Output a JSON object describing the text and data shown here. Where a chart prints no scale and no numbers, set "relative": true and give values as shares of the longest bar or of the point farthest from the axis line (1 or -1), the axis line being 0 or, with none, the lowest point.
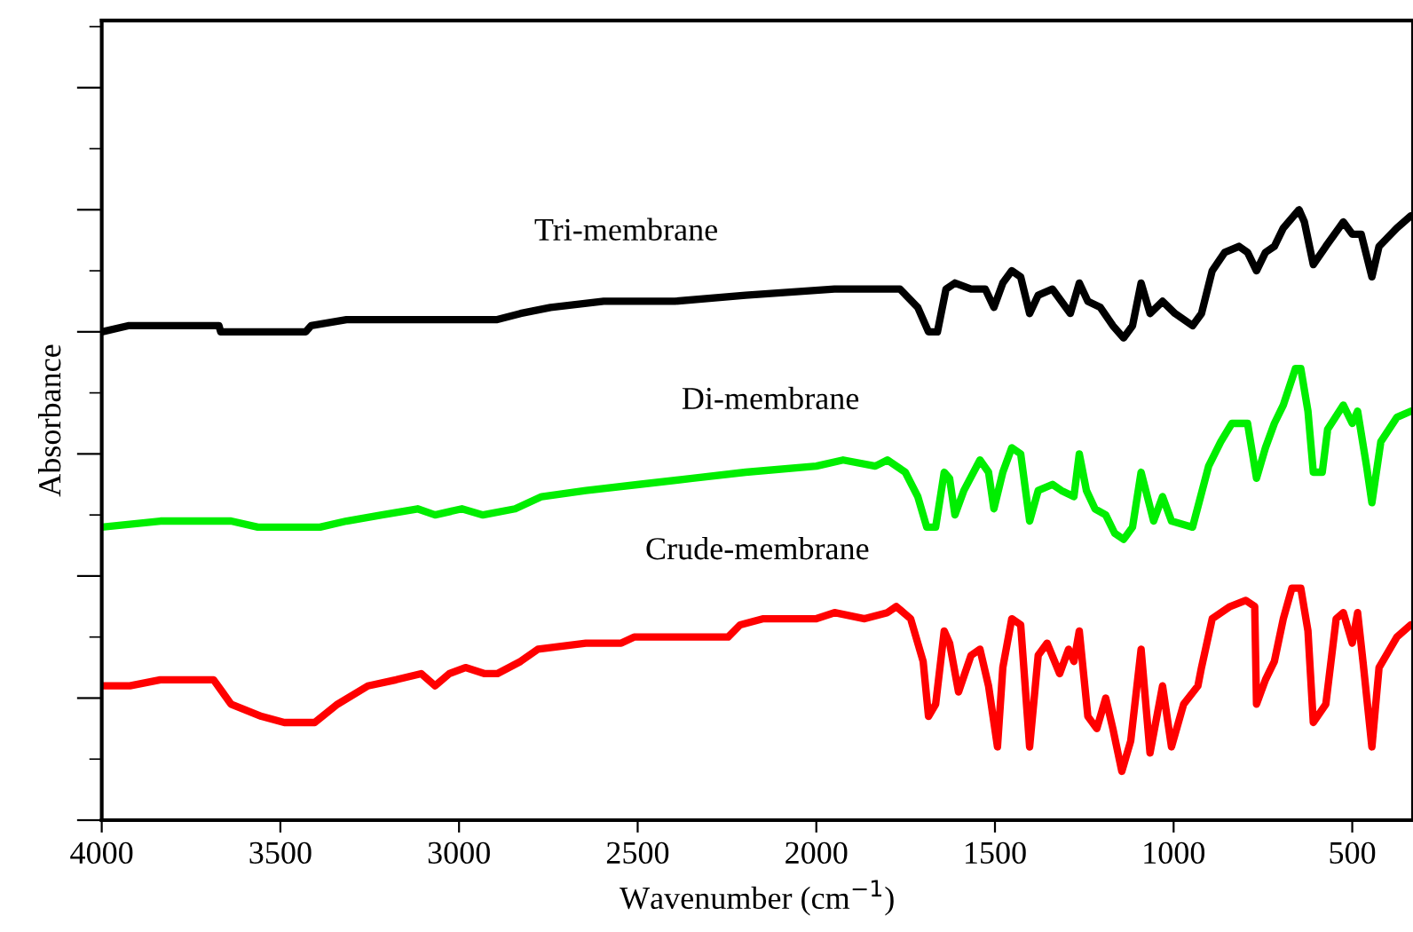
{
  "chart_data": {
    "type": "line",
    "relative": true,
    "xlabel": "Wavenumber (cm$^{−1}$)",
    "ylabel": "Absorbance",
    "xlim": [
      4000,
      330
    ],
    "xticks": [
      4000,
      3500,
      3000,
      2500,
      2000,
      1500,
      1000,
      500
    ],
    "tick_labels": "x",
    "grid": false,
    "legend": false,
    "marker": "none",
    "line_style": "solid",
    "series": [
      {
        "name": "Tri-membrane",
        "color": "#000000",
        "x": [
          4000,
          3926,
          3672,
          3667,
          3429,
          3414,
          3315,
          3191,
          2893,
          2828,
          2744,
          2595,
          2396,
          2198,
          1949,
          1850,
          1766,
          1716,
          1686,
          1661,
          1637,
          1612,
          1567,
          1527,
          1503,
          1478,
          1453,
          1428,
          1403,
          1379,
          1339,
          1289,
          1264,
          1240,
          1205,
          1170,
          1140,
          1115,
          1091,
          1066,
          1031,
          996,
          947,
          922,
          892,
          857,
          817,
          793,
          768,
          743,
          718,
          693,
          649,
          634,
          609,
          574,
          525,
          500,
          475,
          445,
          425,
          375,
          336
        ],
        "values": [
          0.8,
          0.81,
          0.81,
          0.8,
          0.8,
          0.81,
          0.82,
          0.82,
          0.82,
          0.83,
          0.84,
          0.85,
          0.85,
          0.86,
          0.87,
          0.87,
          0.87,
          0.84,
          0.8,
          0.8,
          0.87,
          0.88,
          0.87,
          0.87,
          0.84,
          0.88,
          0.9,
          0.89,
          0.83,
          0.86,
          0.87,
          0.83,
          0.88,
          0.85,
          0.84,
          0.81,
          0.79,
          0.81,
          0.88,
          0.83,
          0.85,
          0.83,
          0.81,
          0.83,
          0.9,
          0.93,
          0.94,
          0.93,
          0.9,
          0.93,
          0.94,
          0.97,
          1.0,
          0.98,
          0.91,
          0.94,
          0.98,
          0.96,
          0.96,
          0.89,
          0.94,
          0.97,
          0.99
        ]
      },
      {
        "name": "Di-membrane",
        "color": "#00ee00",
        "x": [
          4000,
          3836,
          3687,
          3638,
          3563,
          3389,
          3315,
          3216,
          3116,
          3067,
          2992,
          2933,
          2843,
          2769,
          2645,
          2496,
          2347,
          2198,
          2000,
          1925,
          1835,
          1801,
          1751,
          1716,
          1691,
          1666,
          1642,
          1627,
          1612,
          1587,
          1542,
          1518,
          1503,
          1478,
          1453,
          1428,
          1403,
          1379,
          1339,
          1314,
          1279,
          1264,
          1244,
          1220,
          1190,
          1165,
          1140,
          1115,
          1091,
          1056,
          1031,
          1006,
          947,
          902,
          868,
          837,
          793,
          768,
          743,
          718,
          693,
          659,
          644,
          624,
          609,
          584,
          569,
          525,
          500,
          485,
          460,
          445,
          420,
          375,
          336
        ],
        "values": [
          0.48,
          0.49,
          0.49,
          0.49,
          0.48,
          0.48,
          0.49,
          0.5,
          0.51,
          0.5,
          0.51,
          0.5,
          0.51,
          0.53,
          0.54,
          0.55,
          0.56,
          0.57,
          0.58,
          0.59,
          0.58,
          0.59,
          0.57,
          0.53,
          0.48,
          0.48,
          0.57,
          0.56,
          0.5,
          0.54,
          0.59,
          0.57,
          0.51,
          0.57,
          0.61,
          0.6,
          0.49,
          0.54,
          0.55,
          0.54,
          0.53,
          0.6,
          0.54,
          0.51,
          0.5,
          0.47,
          0.46,
          0.48,
          0.57,
          0.49,
          0.53,
          0.49,
          0.48,
          0.58,
          0.62,
          0.65,
          0.65,
          0.56,
          0.61,
          0.65,
          0.68,
          0.74,
          0.74,
          0.67,
          0.57,
          0.57,
          0.64,
          0.68,
          0.65,
          0.67,
          0.58,
          0.52,
          0.62,
          0.66,
          0.67
        ]
      },
      {
        "name": "Crude-membrane",
        "color": "#ff0000",
        "x": [
          4000,
          3921,
          3836,
          3687,
          3638,
          3553,
          3489,
          3404,
          3340,
          3255,
          3176,
          3106,
          3067,
          3027,
          2982,
          2928,
          2893,
          2828,
          2779,
          2645,
          2546,
          2510,
          2431,
          2247,
          2213,
          2148,
          2064,
          2000,
          1949,
          1865,
          1801,
          1776,
          1736,
          1701,
          1686,
          1666,
          1642,
          1627,
          1602,
          1567,
          1542,
          1518,
          1493,
          1478,
          1453,
          1428,
          1403,
          1379,
          1354,
          1319,
          1294,
          1279,
          1264,
          1240,
          1215,
          1190,
          1170,
          1145,
          1120,
          1091,
          1066,
          1031,
          1006,
          972,
          932,
          922,
          892,
          842,
          798,
          773,
          768,
          743,
          718,
          693,
          669,
          644,
          624,
          609,
          574,
          545,
          525,
          500,
          485,
          470,
          445,
          425,
          375,
          336
        ],
        "values": [
          0.22,
          0.22,
          0.23,
          0.23,
          0.19,
          0.17,
          0.16,
          0.16,
          0.19,
          0.22,
          0.23,
          0.24,
          0.22,
          0.24,
          0.25,
          0.24,
          0.24,
          0.26,
          0.28,
          0.29,
          0.29,
          0.3,
          0.3,
          0.3,
          0.32,
          0.33,
          0.33,
          0.33,
          0.34,
          0.33,
          0.34,
          0.35,
          0.33,
          0.26,
          0.17,
          0.19,
          0.31,
          0.29,
          0.21,
          0.27,
          0.28,
          0.22,
          0.12,
          0.25,
          0.33,
          0.32,
          0.12,
          0.27,
          0.29,
          0.24,
          0.28,
          0.26,
          0.31,
          0.17,
          0.15,
          0.2,
          0.15,
          0.08,
          0.13,
          0.28,
          0.11,
          0.22,
          0.12,
          0.19,
          0.22,
          0.25,
          0.33,
          0.35,
          0.36,
          0.35,
          0.19,
          0.23,
          0.26,
          0.33,
          0.38,
          0.38,
          0.31,
          0.16,
          0.19,
          0.33,
          0.34,
          0.29,
          0.34,
          0.26,
          0.12,
          0.25,
          0.3,
          0.32
        ]
      }
    ]
  }
}
